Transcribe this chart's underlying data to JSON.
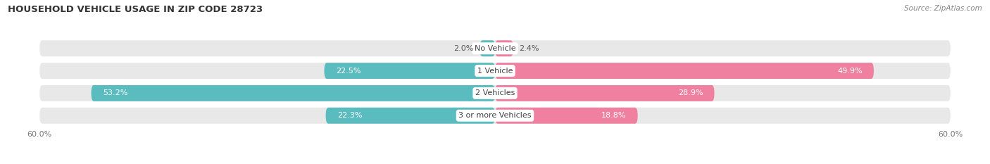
{
  "title": "HOUSEHOLD VEHICLE USAGE IN ZIP CODE 28723",
  "source": "Source: ZipAtlas.com",
  "categories": [
    "No Vehicle",
    "1 Vehicle",
    "2 Vehicles",
    "3 or more Vehicles"
  ],
  "owner_values": [
    2.0,
    22.5,
    53.2,
    22.3
  ],
  "renter_values": [
    2.4,
    49.9,
    28.9,
    18.8
  ],
  "owner_color": "#5bbcbf",
  "renter_color": "#f080a0",
  "axis_max": 60.0,
  "bg_color": "#ffffff",
  "row_bg_color": "#e8e8e8",
  "bar_height": 0.72,
  "title_fontsize": 9.5,
  "label_fontsize": 8.0,
  "tick_fontsize": 8.0,
  "legend_fontsize": 8.0,
  "source_fontsize": 7.5
}
